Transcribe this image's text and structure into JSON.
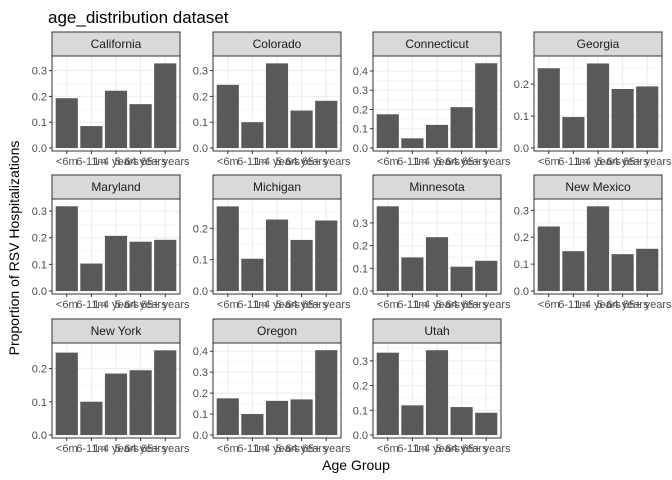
{
  "chart_data": {
    "type": "bar",
    "title": "age_distribution dataset",
    "xlabel": "Age Group",
    "ylabel": "Proportion of RSV Hospitalizations",
    "categories": [
      "<6m",
      "6-11m",
      "1-4 years",
      "5-64 years",
      "65+ years"
    ],
    "bar_color": "#595959",
    "strip_color": "#d9d9d9",
    "grid": true,
    "panels": [
      {
        "name": "California",
        "values": [
          0.193,
          0.085,
          0.222,
          0.17,
          0.328
        ],
        "ylim": [
          0,
          0.345
        ],
        "yticks": [
          0.0,
          0.1,
          0.2,
          0.3
        ],
        "tick_labels": [
          "0.0",
          "0.1",
          "0.2",
          "0.3"
        ]
      },
      {
        "name": "Colorado",
        "values": [
          0.245,
          0.1,
          0.328,
          0.145,
          0.183
        ],
        "ylim": [
          0,
          0.345
        ],
        "yticks": [
          0.0,
          0.1,
          0.2,
          0.3
        ],
        "tick_labels": [
          "0.0",
          "0.1",
          "0.2",
          "0.3"
        ]
      },
      {
        "name": "Connecticut",
        "values": [
          0.175,
          0.05,
          0.12,
          0.212,
          0.44
        ],
        "ylim": [
          0,
          0.462
        ],
        "yticks": [
          0.0,
          0.1,
          0.2,
          0.3,
          0.4
        ],
        "tick_labels": [
          "0.0",
          "0.1",
          "0.2",
          "0.3",
          "0.4"
        ]
      },
      {
        "name": "Georgia",
        "values": [
          0.25,
          0.097,
          0.265,
          0.185,
          0.193
        ],
        "ylim": [
          0,
          0.279
        ],
        "yticks": [
          0.0,
          0.1,
          0.2
        ],
        "tick_labels": [
          "0.0",
          "0.1",
          "0.2"
        ]
      },
      {
        "name": "Maryland",
        "values": [
          0.318,
          0.103,
          0.207,
          0.185,
          0.192
        ],
        "ylim": [
          0,
          0.334
        ],
        "yticks": [
          0.0,
          0.1,
          0.2,
          0.3
        ],
        "tick_labels": [
          "0.0",
          "0.1",
          "0.2",
          "0.3"
        ]
      },
      {
        "name": "Michigan",
        "values": [
          0.27,
          0.103,
          0.228,
          0.163,
          0.225
        ],
        "ylim": [
          0,
          0.284
        ],
        "yticks": [
          0.0,
          0.1,
          0.2
        ],
        "tick_labels": [
          "0.0",
          "0.1",
          "0.2"
        ]
      },
      {
        "name": "Minnesota",
        "values": [
          0.373,
          0.148,
          0.237,
          0.107,
          0.133
        ],
        "ylim": [
          0,
          0.392
        ],
        "yticks": [
          0.0,
          0.1,
          0.2,
          0.3
        ],
        "tick_labels": [
          "0.0",
          "0.1",
          "0.2",
          "0.3"
        ]
      },
      {
        "name": "New Mexico",
        "values": [
          0.24,
          0.148,
          0.315,
          0.137,
          0.157
        ],
        "ylim": [
          0,
          0.331
        ],
        "yticks": [
          0.0,
          0.1,
          0.2,
          0.3
        ],
        "tick_labels": [
          "0.0",
          "0.1",
          "0.2",
          "0.3"
        ]
      },
      {
        "name": "New York",
        "values": [
          0.248,
          0.1,
          0.185,
          0.195,
          0.255
        ],
        "ylim": [
          0,
          0.268
        ],
        "yticks": [
          0.0,
          0.1,
          0.2
        ],
        "tick_labels": [
          "0.0",
          "0.1",
          "0.2"
        ]
      },
      {
        "name": "Oregon",
        "values": [
          0.175,
          0.1,
          0.163,
          0.17,
          0.405
        ],
        "ylim": [
          0,
          0.425
        ],
        "yticks": [
          0.0,
          0.1,
          0.2,
          0.3,
          0.4
        ],
        "tick_labels": [
          "0.0",
          "0.1",
          "0.2",
          "0.3",
          "0.4"
        ]
      },
      {
        "name": "Utah",
        "values": [
          0.333,
          0.12,
          0.343,
          0.113,
          0.09
        ],
        "ylim": [
          0,
          0.36
        ],
        "yticks": [
          0.0,
          0.1,
          0.2,
          0.3
        ],
        "tick_labels": [
          "0.0",
          "0.1",
          "0.2",
          "0.3"
        ]
      }
    ]
  }
}
